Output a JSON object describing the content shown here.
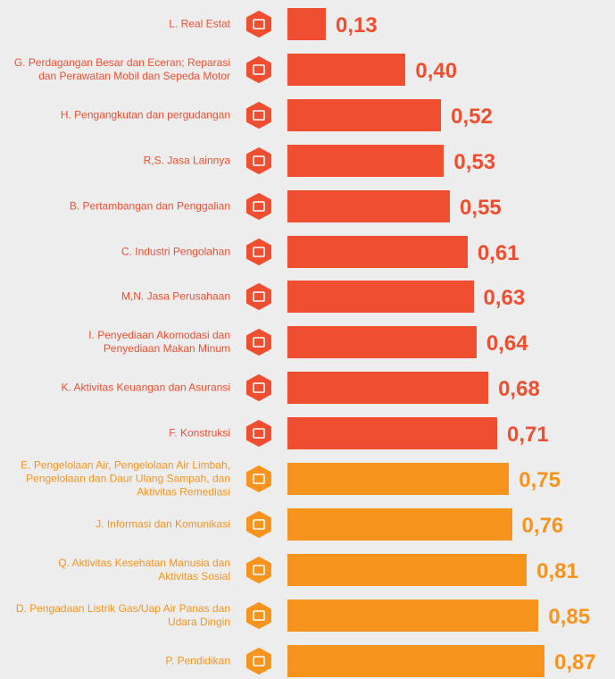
{
  "chart_data": {
    "type": "bar",
    "orientation": "horizontal",
    "categories": [
      "L. Real Estat",
      "G. Perdagangan Besar dan Eceran; Reparasi\ndan Perawatan Mobil dan Sepeda Motor",
      "H. Pengangkutan dan pergudangan",
      "R,S. Jasa Lainnya",
      "B. Pertambangan dan Penggalian",
      "C. Industri Pengolahan",
      "M,N. Jasa Perusahaan",
      "I. Penyediaan Akomodasi dan\nPenyediaan Makan Minum",
      "K. Aktivitas Keuangan dan Asuransi",
      "F. Konstruksi",
      "E. Pengelolaan Air, Pengelolaan Air Limbah,\nPengelolaan dan Daur Ulang Sampah, dan\nAktivitas Remediasi",
      "J. Informasi dan Komunikasi",
      "Q. Aktivitas Kesehatan Manusia dan\nAktivitas Sosial",
      "D. Pengadaan Listrik Gas/Uap Air Panas dan\nUdara Dingin",
      "P. Pendidikan"
    ],
    "values": [
      0.13,
      0.4,
      0.52,
      0.53,
      0.55,
      0.61,
      0.63,
      0.64,
      0.68,
      0.71,
      0.75,
      0.76,
      0.81,
      0.85,
      0.87
    ],
    "value_labels": [
      "0,13",
      "0,40",
      "0,52",
      "0,53",
      "0,55",
      "0,61",
      "0,63",
      "0,64",
      "0,68",
      "0,71",
      "0,75",
      "0,76",
      "0,81",
      "0,85",
      "0,87"
    ],
    "colors": [
      "#f04e30",
      "#f04e30",
      "#f04e30",
      "#f04e30",
      "#f04e30",
      "#f04e30",
      "#f04e30",
      "#f04e30",
      "#f04e30",
      "#f04e30",
      "#f7941d",
      "#f7941d",
      "#f7941d",
      "#f7941d",
      "#f7941d"
    ]
  }
}
